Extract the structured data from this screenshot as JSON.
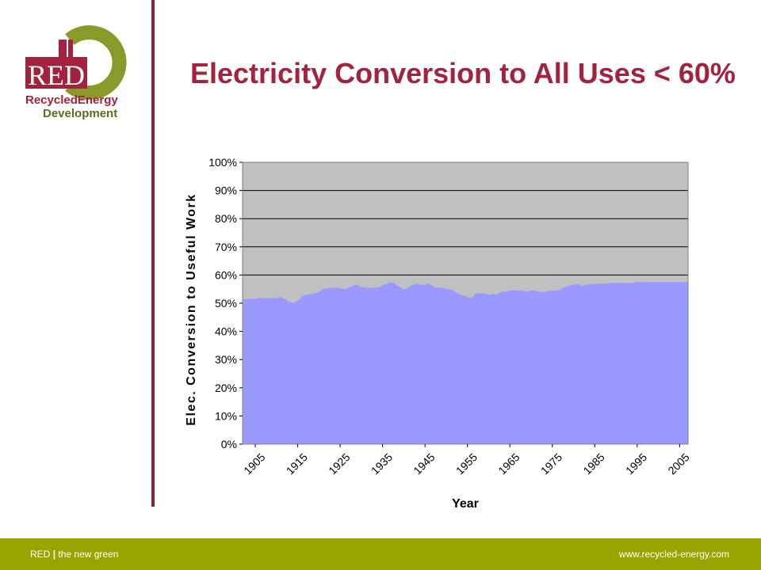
{
  "header": {
    "title": "Electricity Conversion to All Uses < 60%"
  },
  "logo": {
    "name": "RED",
    "line1": "RecycledEnergy",
    "line2": "Development",
    "colors": {
      "red": "#a3223d",
      "green": "#8a9a2a"
    }
  },
  "footer": {
    "brand": "RED",
    "separator": "|",
    "tagline": "the new green",
    "url": "www.recycled-energy.com",
    "background": "#99a400"
  },
  "chart_data": {
    "type": "area",
    "title": "",
    "xlabel": "Year",
    "ylabel": "Elec. Conversion to Useful Work",
    "ylim": [
      0,
      1
    ],
    "yticks": [
      "0%",
      "10%",
      "20%",
      "30%",
      "40%",
      "50%",
      "60%",
      "70%",
      "80%",
      "90%",
      "100%"
    ],
    "xticks": [
      "1905",
      "1915",
      "1925",
      "1935",
      "1945",
      "1955",
      "1965",
      "1975",
      "1985",
      "1995",
      "2005"
    ],
    "grid": true,
    "legend": "none",
    "plot_background": "#c0c0c0",
    "fill_color": "#9999ff",
    "series": [
      {
        "x": [
          1902,
          1903,
          1904,
          1905,
          1906,
          1907,
          1908,
          1909,
          1910,
          1911,
          1912,
          1913,
          1914,
          1915,
          1916,
          1917,
          1918,
          1919,
          1920,
          1921,
          1922,
          1923,
          1924,
          1925,
          1926,
          1927,
          1928,
          1929,
          1930,
          1931,
          1932,
          1933,
          1934,
          1935,
          1936,
          1937,
          1938,
          1939,
          1940,
          1941,
          1942,
          1943,
          1944,
          1945,
          1946,
          1947,
          1948,
          1949,
          1950,
          1951,
          1952,
          1953,
          1954,
          1955,
          1956,
          1957,
          1958,
          1959,
          1960,
          1961,
          1962,
          1963,
          1964,
          1965,
          1966,
          1967,
          1968,
          1969,
          1970,
          1971,
          1972,
          1973,
          1974,
          1975,
          1976,
          1977,
          1978,
          1979,
          1980,
          1981,
          1982,
          1983,
          1984,
          1985,
          1986,
          1987,
          1988,
          1989,
          1990,
          1991,
          1992,
          1993,
          1994,
          1995,
          1996,
          1997,
          1998,
          1999,
          2000,
          2001,
          2002,
          2003,
          2004,
          2005,
          2006,
          2007
        ],
        "values": [
          0.515,
          0.515,
          0.515,
          0.515,
          0.518,
          0.518,
          0.518,
          0.518,
          0.518,
          0.522,
          0.515,
          0.505,
          0.502,
          0.508,
          0.525,
          0.53,
          0.532,
          0.535,
          0.54,
          0.55,
          0.553,
          0.555,
          0.555,
          0.553,
          0.55,
          0.555,
          0.562,
          0.565,
          0.558,
          0.555,
          0.555,
          0.555,
          0.555,
          0.565,
          0.568,
          0.575,
          0.568,
          0.558,
          0.55,
          0.555,
          0.565,
          0.568,
          0.565,
          0.565,
          0.57,
          0.558,
          0.555,
          0.555,
          0.552,
          0.548,
          0.542,
          0.532,
          0.528,
          0.522,
          0.518,
          0.535,
          0.535,
          0.535,
          0.53,
          0.532,
          0.532,
          0.54,
          0.54,
          0.545,
          0.545,
          0.545,
          0.545,
          0.54,
          0.545,
          0.545,
          0.54,
          0.54,
          0.542,
          0.545,
          0.545,
          0.55,
          0.558,
          0.562,
          0.565,
          0.568,
          0.562,
          0.565,
          0.568,
          0.568,
          0.57,
          0.57,
          0.57,
          0.572,
          0.572,
          0.572,
          0.572,
          0.572,
          0.572,
          0.575,
          0.575,
          0.575,
          0.575,
          0.575,
          0.575,
          0.575,
          0.575,
          0.575,
          0.575,
          0.575,
          0.575,
          0.575
        ]
      }
    ]
  }
}
